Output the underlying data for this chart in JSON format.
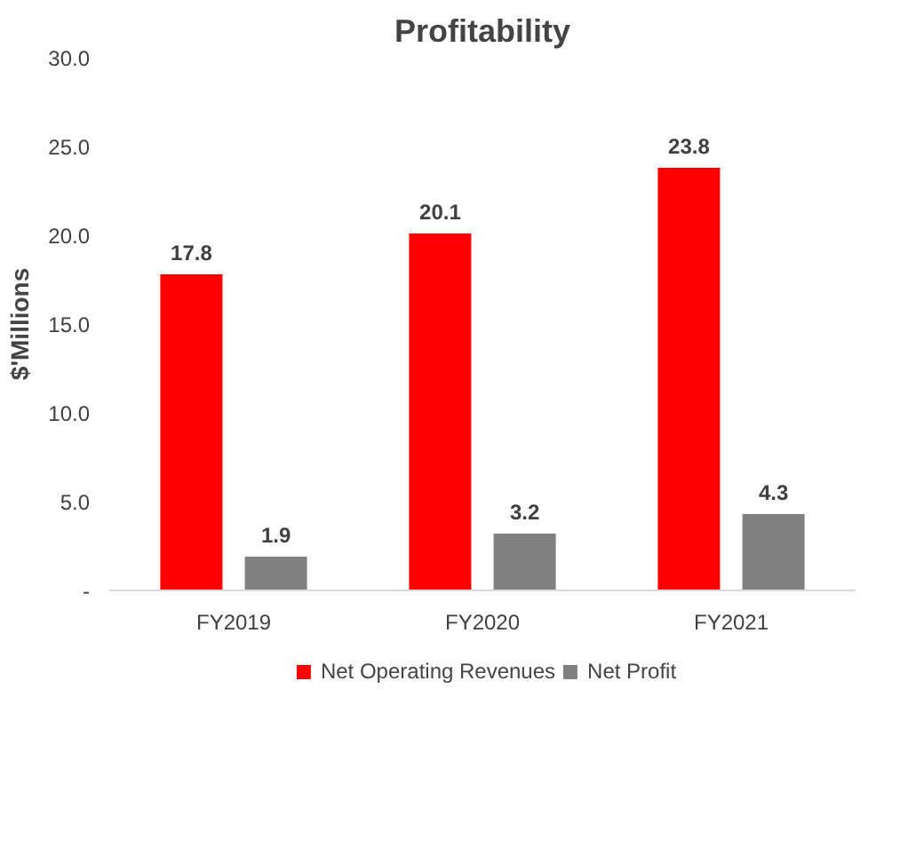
{
  "chart_data": {
    "type": "bar",
    "title": "Profitability",
    "ylabel": "$'Millions",
    "categories": [
      "FY2019",
      "FY2020",
      "FY2021"
    ],
    "series": [
      {
        "name": "Net Operating Revenues",
        "color": "#ff0000",
        "values": [
          17.8,
          20.1,
          23.8
        ]
      },
      {
        "name": "Net Profit",
        "color": "#808080",
        "values": [
          1.9,
          3.2,
          4.3
        ]
      }
    ],
    "ylim": [
      0,
      30
    ],
    "yticks": [
      {
        "value": 0,
        "label": "-"
      },
      {
        "value": 5,
        "label": "5.0"
      },
      {
        "value": 10,
        "label": "10.0"
      },
      {
        "value": 15,
        "label": "15.0"
      },
      {
        "value": 20,
        "label": "20.0"
      },
      {
        "value": 25,
        "label": "25.0"
      },
      {
        "value": 30,
        "label": "30.0"
      }
    ],
    "data_labels": true,
    "grid": false,
    "legend": "bottom"
  }
}
